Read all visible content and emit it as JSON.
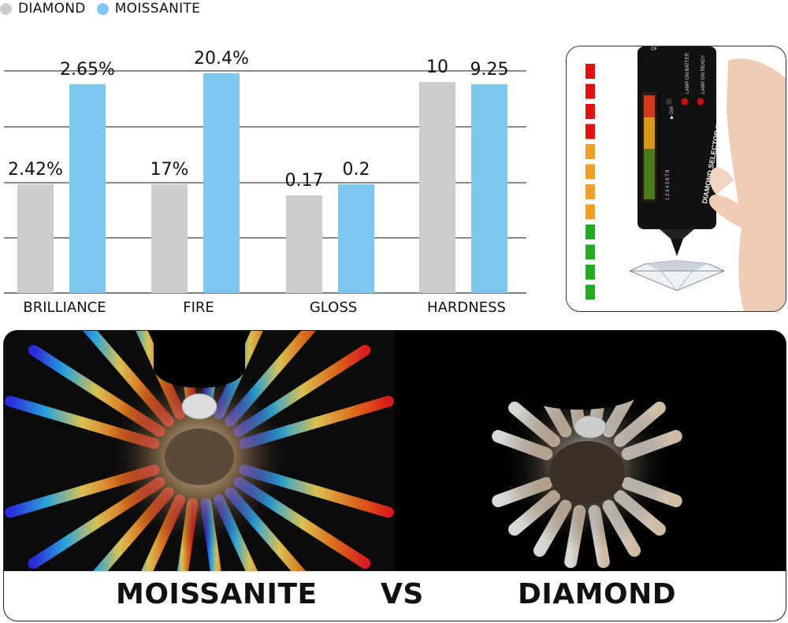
{
  "legend": {
    "items": [
      {
        "label": "DIAMOND",
        "color": "#cccccc"
      },
      {
        "label": "MOISSANITE",
        "color": "#7ec8f0"
      }
    ]
  },
  "chart_data": {
    "type": "bar",
    "categories": [
      "BRILLIANCE",
      "FIRE",
      "GLOSS",
      "HARDNESS"
    ],
    "series": [
      {
        "name": "DIAMOND",
        "color": "#cccccc",
        "values": [
          2.42,
          17,
          0.17,
          10
        ],
        "labels": [
          "2.42%",
          "17%",
          "0.17",
          "10"
        ],
        "heights": [
          0.49,
          0.49,
          0.44,
          0.95
        ]
      },
      {
        "name": "MOISSANITE",
        "color": "#7ec8f0",
        "values": [
          2.65,
          20.4,
          0.2,
          9.25
        ],
        "labels": [
          "2.65%",
          "20.4%",
          "0.2",
          "9.25"
        ],
        "heights": [
          0.94,
          0.99,
          0.49,
          0.94
        ]
      }
    ],
    "grid": true,
    "legend_position": "top-left",
    "note": "each category uses its own scale"
  },
  "tester": {
    "label_of": "OF",
    "label_lamp_battery": "LAMP ON BATTER",
    "label_lamp_ready": "LAMP ON READY",
    "label_dia": "▶ DIA",
    "device_name": "DIAMOND SELECTOR II",
    "scale_numbers": "1 2 3 4 5 6 7 8",
    "indicator_colors": [
      "#e01010",
      "#e01010",
      "#e01010",
      "#e01010",
      "#f0a020",
      "#f0a020",
      "#f0a020",
      "#f0a020",
      "#22aa22",
      "#22aa22",
      "#22aa22",
      "#22aa22"
    ]
  },
  "comparison": {
    "left_label": "MOISSANITE",
    "vs_label": "VS",
    "right_label": "DIAMOND"
  }
}
